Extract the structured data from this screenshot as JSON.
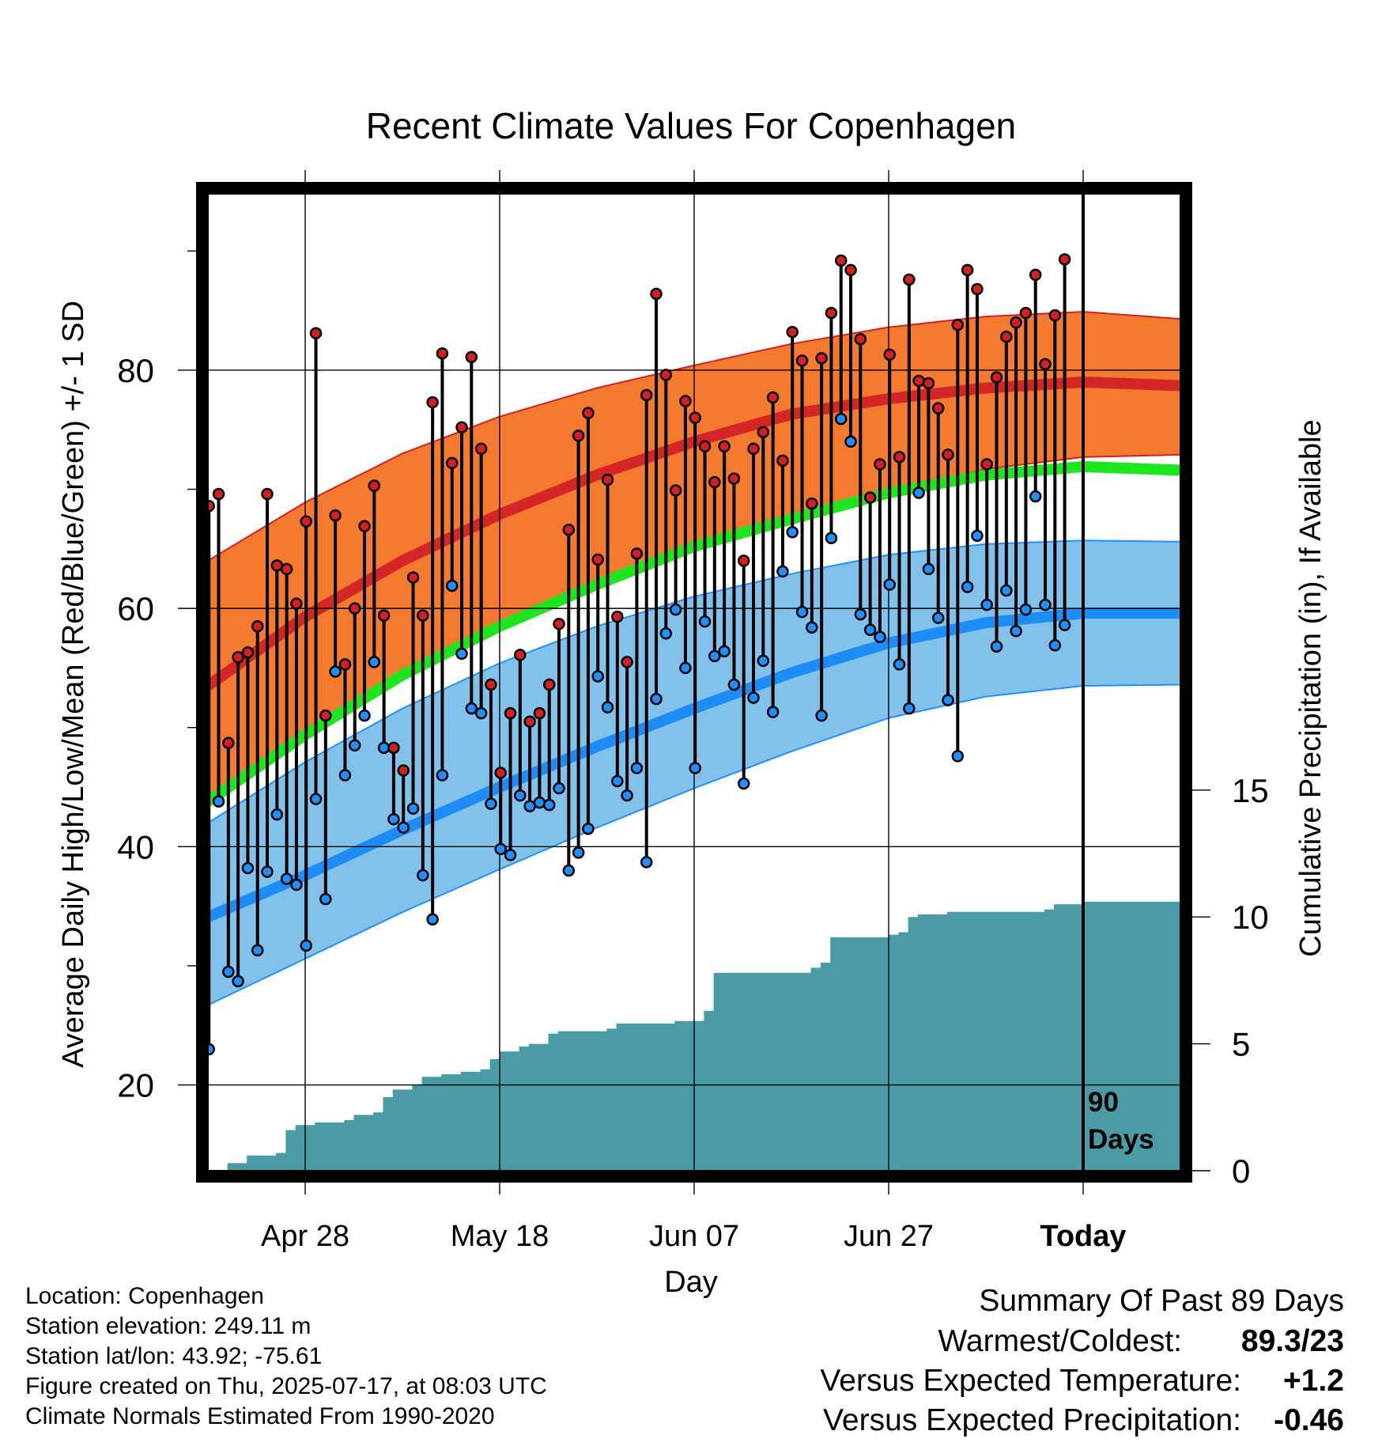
{
  "chart_data": {
    "type": "line",
    "title": "Recent Climate Values For Copenhagen",
    "xlabel": "Day",
    "ylabel": "Average Daily High/Low/Mean (Red/Blue/Green) +/- 1 SD",
    "y2label": "Cumulative Precipitation (in), If Available",
    "x_tick_labels": [
      "Apr 28",
      "May 18",
      "Jun 07",
      "Jun 27",
      "Today"
    ],
    "x_tick_days": [
      10,
      30,
      50,
      70,
      90
    ],
    "x_domain": [
      0,
      100
    ],
    "y_ticks": [
      20,
      40,
      60,
      80
    ],
    "y_minor_ticks": [
      30,
      50,
      70,
      90
    ],
    "ylim": [
      12.8,
      94.8
    ],
    "y2_ticks": [
      0,
      5,
      10,
      15
    ],
    "y2lim": [
      0,
      38.5
    ],
    "today_day": 90,
    "today_label_line1": "90",
    "today_label_line2": "Days",
    "colors": {
      "high_band": "#f47a30",
      "high_band_edge": "#d42020",
      "high_normal": "#d42626",
      "low_band": "#82c2ea",
      "low_band_edge": "#1e90ff",
      "low_normal": "#1e8cf5",
      "mean_normal": "#1ee61e",
      "precip": "#4a9ba5",
      "high_dot": "#d42020",
      "low_dot": "#1e90ff",
      "frame": "#000000"
    },
    "normals": {
      "days": [
        0,
        10,
        20,
        30,
        40,
        50,
        60,
        70,
        80,
        90,
        100
      ],
      "high_mean": [
        53.5,
        59.3,
        64.0,
        67.9,
        71.2,
        74.0,
        76.3,
        77.6,
        78.5,
        79.0,
        78.7
      ],
      "high_upper": [
        64.0,
        68.9,
        73.0,
        76.1,
        78.5,
        80.4,
        82.2,
        83.6,
        84.5,
        84.9,
        84.3
      ],
      "high_lower": [
        43.8,
        49.4,
        54.4,
        58.5,
        62.0,
        65.2,
        67.5,
        69.7,
        71.7,
        72.7,
        72.9
      ],
      "mean_normal": [
        43.8,
        49.4,
        54.4,
        58.5,
        62.0,
        65.2,
        67.5,
        69.7,
        71.2,
        71.9,
        71.6
      ],
      "low_mean": [
        34.1,
        37.6,
        41.4,
        45.0,
        48.4,
        51.6,
        54.6,
        57.1,
        58.8,
        59.6,
        59.6
      ],
      "low_upper": [
        42.0,
        47.1,
        51.6,
        55.4,
        58.5,
        61.0,
        62.9,
        64.5,
        65.4,
        65.7,
        65.6
      ],
      "low_lower": [
        26.7,
        30.6,
        34.5,
        38.1,
        41.6,
        44.9,
        48.0,
        50.8,
        52.6,
        53.5,
        53.6
      ]
    },
    "daily": {
      "high": [
        68.6,
        69.6,
        48.7,
        55.9,
        56.3,
        58.5,
        69.6,
        63.6,
        63.3,
        60.4,
        67.3,
        83.1,
        51.0,
        67.8,
        55.3,
        60.0,
        66.9,
        70.3,
        59.4,
        48.3,
        46.4,
        62.6,
        59.4,
        77.3,
        81.4,
        72.2,
        75.2,
        81.1,
        73.4,
        53.6,
        46.2,
        51.2,
        56.1,
        50.5,
        51.2,
        53.6,
        58.7,
        66.6,
        74.5,
        76.4,
        64.1,
        70.8,
        59.3,
        55.5,
        64.6,
        77.9,
        86.4,
        79.6,
        69.9,
        77.4,
        76.0,
        73.6,
        70.6,
        73.6,
        70.9,
        64.0,
        73.4,
        74.8,
        77.7,
        72.4,
        83.2,
        80.8,
        68.8,
        81.0,
        84.8,
        89.2,
        88.4,
        82.6,
        69.3,
        72.1,
        81.3,
        72.7,
        87.6,
        79.1,
        78.9,
        76.8,
        72.9,
        83.8,
        88.4,
        86.8,
        72.1,
        79.4,
        82.8,
        84.0,
        84.8,
        88.0,
        80.5,
        84.6,
        89.3
      ],
      "low": [
        23.0,
        43.8,
        29.5,
        28.7,
        38.2,
        31.3,
        37.9,
        42.7,
        37.3,
        36.8,
        31.7,
        44.0,
        35.6,
        54.7,
        46.0,
        48.5,
        51.0,
        55.5,
        48.3,
        42.3,
        41.6,
        43.2,
        37.6,
        33.9,
        46.0,
        61.9,
        56.2,
        51.6,
        51.2,
        43.6,
        39.8,
        39.3,
        44.3,
        43.4,
        43.7,
        43.5,
        44.9,
        38.0,
        39.5,
        41.5,
        54.3,
        51.7,
        45.5,
        44.3,
        46.6,
        38.7,
        52.4,
        57.9,
        59.9,
        55.0,
        46.6,
        58.9,
        56.0,
        56.4,
        53.6,
        45.3,
        52.5,
        55.6,
        51.3,
        63.1,
        66.4,
        59.7,
        58.4,
        51.0,
        65.9,
        75.9,
        74.0,
        59.5,
        58.2,
        57.6,
        62.0,
        55.3,
        51.6,
        69.7,
        63.3,
        59.2,
        52.3,
        47.6,
        61.8,
        66.1,
        60.3,
        56.8,
        61.5,
        58.1,
        59.9,
        69.4,
        60.3,
        56.9,
        58.6
      ]
    },
    "precip_cumulative": [
      [
        0,
        0.0
      ],
      [
        1,
        0.0
      ],
      [
        2,
        0.3
      ],
      [
        3,
        0.3
      ],
      [
        4,
        0.6
      ],
      [
        7,
        0.7
      ],
      [
        8,
        1.6
      ],
      [
        9,
        1.8
      ],
      [
        11,
        1.9
      ],
      [
        14,
        2.0
      ],
      [
        15,
        2.2
      ],
      [
        17,
        2.3
      ],
      [
        18,
        2.9
      ],
      [
        19,
        3.2
      ],
      [
        21,
        3.4
      ],
      [
        22,
        3.7
      ],
      [
        24,
        3.8
      ],
      [
        26,
        3.9
      ],
      [
        28,
        4.0
      ],
      [
        29,
        4.4
      ],
      [
        30,
        4.7
      ],
      [
        32,
        4.9
      ],
      [
        33,
        5.0
      ],
      [
        35,
        5.4
      ],
      [
        36,
        5.5
      ],
      [
        41,
        5.6
      ],
      [
        42,
        5.8
      ],
      [
        48,
        5.9
      ],
      [
        50,
        5.9
      ],
      [
        51,
        6.3
      ],
      [
        52,
        7.8
      ],
      [
        53,
        7.8
      ],
      [
        62,
        8.0
      ],
      [
        63,
        8.2
      ],
      [
        64,
        9.2
      ],
      [
        70,
        9.3
      ],
      [
        71,
        9.4
      ],
      [
        72,
        10.0
      ],
      [
        73,
        10.1
      ],
      [
        76,
        10.2
      ],
      [
        81,
        10.2
      ],
      [
        86,
        10.3
      ],
      [
        87,
        10.5
      ],
      [
        90,
        10.6
      ],
      [
        100,
        10.6
      ]
    ]
  },
  "footer": {
    "location": "Location: Copenhagen",
    "elevation": "Station elevation: 249.11 m",
    "latlon": "Station lat/lon: 43.92; -75.61",
    "created": "Figure created on Thu, 2025-07-17, at 08:03 UTC",
    "normals": "Climate Normals Estimated From 1990-2020"
  },
  "summary": {
    "heading": "Summary Of Past 89 Days",
    "warmest_label": "Warmest/Coldest:",
    "warmest_value": "89.3/23",
    "temp_label": "Versus Expected Temperature:",
    "temp_value": "+1.2",
    "temp_color": "#d42020",
    "precip_label": "Versus Expected Precipitation:",
    "precip_value": "-0.46",
    "precip_color": "#a0522d"
  }
}
